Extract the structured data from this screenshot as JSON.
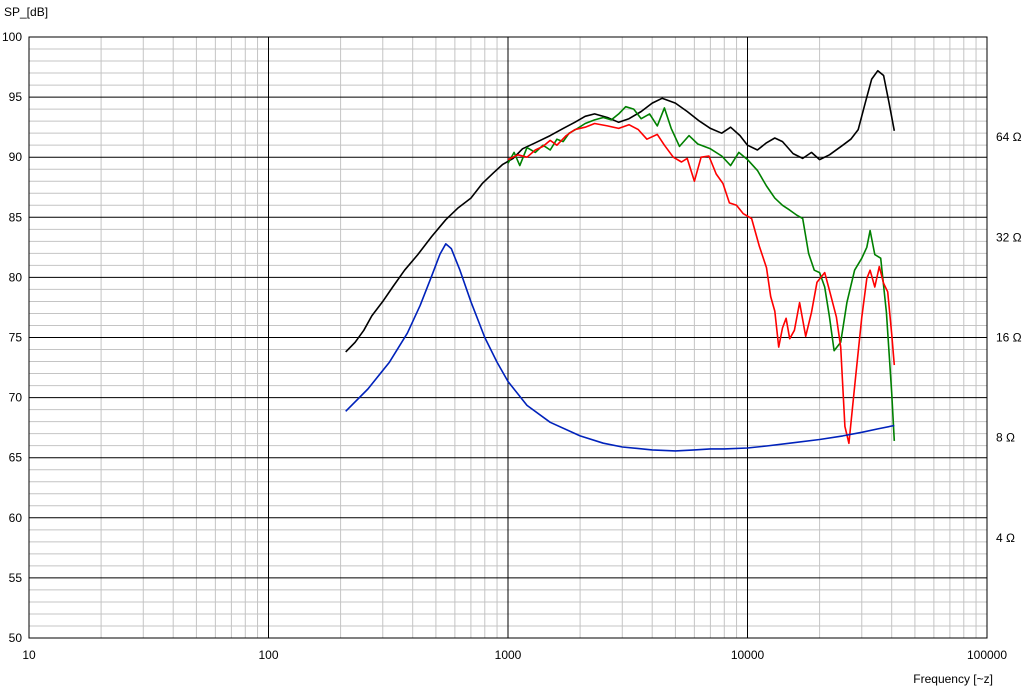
{
  "chart_data": {
    "type": "line",
    "ylabel": "SP_[dB]",
    "xlabel": "Frequency [~z]",
    "x_scale": "log",
    "xlim": [
      10,
      100000
    ],
    "ylim": [
      50,
      100
    ],
    "y2lim_ohm": [
      2,
      128
    ],
    "y2_scale": "log2",
    "grid": true,
    "x_ticks": [
      {
        "value": 10,
        "label": "10"
      },
      {
        "value": 100,
        "label": "100"
      },
      {
        "value": 1000,
        "label": "1000"
      },
      {
        "value": 10000,
        "label": "10000"
      },
      {
        "value": 100000,
        "label": "100000"
      }
    ],
    "y_ticks": [
      {
        "value": 100,
        "label": "100"
      },
      {
        "value": 95,
        "label": "95"
      },
      {
        "value": 90,
        "label": "90"
      },
      {
        "value": 85,
        "label": "85"
      },
      {
        "value": 80,
        "label": "80"
      },
      {
        "value": 75,
        "label": "75"
      },
      {
        "value": 70,
        "label": "70"
      },
      {
        "value": 65,
        "label": "65"
      },
      {
        "value": 60,
        "label": "60"
      },
      {
        "value": 55,
        "label": "55"
      },
      {
        "value": 50,
        "label": "50"
      }
    ],
    "y2_ticks": [
      {
        "value": 64,
        "label": "64 Ω"
      },
      {
        "value": 32,
        "label": "32 Ω"
      },
      {
        "value": 16,
        "label": "16 Ω"
      },
      {
        "value": 8,
        "label": "8 Ω"
      },
      {
        "value": 4,
        "label": "4 Ω"
      }
    ],
    "series": [
      {
        "color": "#000000",
        "axis": "dB",
        "points": [
          [
            210,
            73.8
          ],
          [
            230,
            74.6
          ],
          [
            250,
            75.6
          ],
          [
            270,
            76.8
          ],
          [
            300,
            78.0
          ],
          [
            330,
            79.2
          ],
          [
            370,
            80.6
          ],
          [
            420,
            81.9
          ],
          [
            480,
            83.4
          ],
          [
            550,
            84.8
          ],
          [
            620,
            85.8
          ],
          [
            700,
            86.6
          ],
          [
            780,
            87.8
          ],
          [
            870,
            88.7
          ],
          [
            950,
            89.4
          ],
          [
            1050,
            89.9
          ],
          [
            1150,
            90.7
          ],
          [
            1300,
            91.2
          ],
          [
            1500,
            91.8
          ],
          [
            1700,
            92.4
          ],
          [
            1900,
            92.9
          ],
          [
            2100,
            93.4
          ],
          [
            2300,
            93.6
          ],
          [
            2600,
            93.3
          ],
          [
            2900,
            92.9
          ],
          [
            3200,
            93.2
          ],
          [
            3600,
            93.8
          ],
          [
            4000,
            94.5
          ],
          [
            4400,
            94.9
          ],
          [
            5000,
            94.5
          ],
          [
            5600,
            93.8
          ],
          [
            6300,
            93.0
          ],
          [
            7000,
            92.4
          ],
          [
            7800,
            92.0
          ],
          [
            8500,
            92.5
          ],
          [
            9300,
            91.8
          ],
          [
            10000,
            91.0
          ],
          [
            11000,
            90.6
          ],
          [
            12000,
            91.2
          ],
          [
            13000,
            91.6
          ],
          [
            14000,
            91.3
          ],
          [
            15500,
            90.3
          ],
          [
            17000,
            89.9
          ],
          [
            18500,
            90.4
          ],
          [
            20000,
            89.8
          ],
          [
            22000,
            90.2
          ],
          [
            25000,
            91.0
          ],
          [
            27000,
            91.5
          ],
          [
            29000,
            92.3
          ],
          [
            31000,
            94.5
          ],
          [
            33000,
            96.5
          ],
          [
            35000,
            97.2
          ],
          [
            37000,
            96.8
          ],
          [
            39000,
            94.5
          ],
          [
            41000,
            92.2
          ]
        ]
      },
      {
        "color": "#008000",
        "axis": "dB",
        "points": [
          [
            1000,
            89.5
          ],
          [
            1060,
            90.4
          ],
          [
            1120,
            89.3
          ],
          [
            1200,
            90.8
          ],
          [
            1300,
            90.4
          ],
          [
            1400,
            91.0
          ],
          [
            1500,
            90.6
          ],
          [
            1600,
            91.5
          ],
          [
            1700,
            91.3
          ],
          [
            1800,
            92.0
          ],
          [
            1950,
            92.4
          ],
          [
            2100,
            92.8
          ],
          [
            2300,
            93.1
          ],
          [
            2500,
            93.3
          ],
          [
            2700,
            93.1
          ],
          [
            2900,
            93.6
          ],
          [
            3100,
            94.2
          ],
          [
            3350,
            94.0
          ],
          [
            3600,
            93.2
          ],
          [
            3900,
            93.6
          ],
          [
            4200,
            92.6
          ],
          [
            4500,
            94.1
          ],
          [
            4800,
            92.4
          ],
          [
            5200,
            90.9
          ],
          [
            5700,
            91.8
          ],
          [
            6200,
            91.1
          ],
          [
            7000,
            90.7
          ],
          [
            7800,
            90.1
          ],
          [
            8500,
            89.3
          ],
          [
            9200,
            90.4
          ],
          [
            10000,
            89.8
          ],
          [
            11000,
            88.9
          ],
          [
            12000,
            87.6
          ],
          [
            13000,
            86.6
          ],
          [
            14000,
            86.0
          ],
          [
            15000,
            85.6
          ],
          [
            16000,
            85.2
          ],
          [
            17000,
            84.9
          ],
          [
            18000,
            82.0
          ],
          [
            19000,
            80.6
          ],
          [
            20000,
            80.4
          ],
          [
            21000,
            79.2
          ],
          [
            22000,
            76.7
          ],
          [
            23000,
            73.9
          ],
          [
            24500,
            74.6
          ],
          [
            26000,
            77.9
          ],
          [
            28000,
            80.6
          ],
          [
            30000,
            81.6
          ],
          [
            31500,
            82.5
          ],
          [
            32500,
            83.9
          ],
          [
            34000,
            81.9
          ],
          [
            36000,
            81.6
          ],
          [
            38000,
            77.1
          ],
          [
            40000,
            70.4
          ],
          [
            41000,
            66.4
          ]
        ]
      },
      {
        "color": "#ff0000",
        "axis": "dB",
        "points": [
          [
            1000,
            89.8
          ],
          [
            1100,
            90.2
          ],
          [
            1200,
            90.0
          ],
          [
            1300,
            90.6
          ],
          [
            1400,
            90.9
          ],
          [
            1500,
            91.4
          ],
          [
            1600,
            91.0
          ],
          [
            1750,
            91.8
          ],
          [
            1900,
            92.3
          ],
          [
            2100,
            92.5
          ],
          [
            2300,
            92.8
          ],
          [
            2600,
            92.6
          ],
          [
            2900,
            92.4
          ],
          [
            3200,
            92.7
          ],
          [
            3500,
            92.3
          ],
          [
            3800,
            91.5
          ],
          [
            4200,
            91.9
          ],
          [
            4500,
            91.0
          ],
          [
            4900,
            90.0
          ],
          [
            5300,
            89.6
          ],
          [
            5600,
            89.9
          ],
          [
            6000,
            88.0
          ],
          [
            6400,
            90.0
          ],
          [
            6900,
            90.1
          ],
          [
            7400,
            88.6
          ],
          [
            7900,
            87.8
          ],
          [
            8400,
            86.2
          ],
          [
            9000,
            86.0
          ],
          [
            9600,
            85.3
          ],
          [
            10400,
            84.9
          ],
          [
            11200,
            82.6
          ],
          [
            12000,
            80.8
          ],
          [
            12500,
            78.4
          ],
          [
            13000,
            77.2
          ],
          [
            13500,
            74.2
          ],
          [
            14000,
            75.8
          ],
          [
            14500,
            76.6
          ],
          [
            15000,
            74.9
          ],
          [
            15700,
            75.6
          ],
          [
            16500,
            77.9
          ],
          [
            17500,
            75.1
          ],
          [
            18500,
            77.1
          ],
          [
            19500,
            79.6
          ],
          [
            21000,
            80.4
          ],
          [
            22000,
            78.9
          ],
          [
            23500,
            76.7
          ],
          [
            24500,
            74.2
          ],
          [
            25500,
            67.6
          ],
          [
            26500,
            66.2
          ],
          [
            28000,
            70.9
          ],
          [
            30000,
            76.7
          ],
          [
            31500,
            79.9
          ],
          [
            32500,
            80.6
          ],
          [
            34000,
            79.2
          ],
          [
            35500,
            80.9
          ],
          [
            37000,
            79.5
          ],
          [
            38500,
            78.8
          ],
          [
            40000,
            75.3
          ],
          [
            41000,
            72.7
          ]
        ]
      },
      {
        "color": "#0022bb",
        "axis": "ohm",
        "points": [
          [
            210,
            9.6
          ],
          [
            260,
            11.2
          ],
          [
            320,
            13.5
          ],
          [
            380,
            16.5
          ],
          [
            430,
            20.0
          ],
          [
            480,
            24.5
          ],
          [
            520,
            28.5
          ],
          [
            550,
            30.6
          ],
          [
            580,
            29.6
          ],
          [
            630,
            25.5
          ],
          [
            700,
            20.5
          ],
          [
            800,
            16.0
          ],
          [
            900,
            13.5
          ],
          [
            1000,
            11.8
          ],
          [
            1200,
            10.0
          ],
          [
            1500,
            8.9
          ],
          [
            2000,
            8.1
          ],
          [
            2500,
            7.7
          ],
          [
            3000,
            7.5
          ],
          [
            4000,
            7.35
          ],
          [
            5000,
            7.3
          ],
          [
            6000,
            7.35
          ],
          [
            7000,
            7.4
          ],
          [
            8000,
            7.4
          ],
          [
            10000,
            7.45
          ],
          [
            12000,
            7.55
          ],
          [
            15000,
            7.7
          ],
          [
            20000,
            7.9
          ],
          [
            25000,
            8.1
          ],
          [
            30000,
            8.3
          ],
          [
            35000,
            8.5
          ],
          [
            41000,
            8.7
          ]
        ]
      }
    ]
  }
}
